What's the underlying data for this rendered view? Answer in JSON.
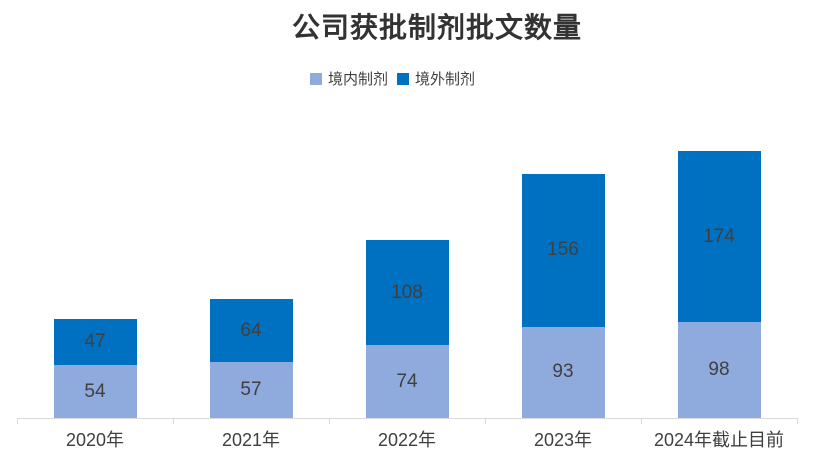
{
  "title": {
    "text": "公司获批制剂批文数量",
    "color": "#333333"
  },
  "legend": {
    "items": [
      {
        "label": "境内制剂",
        "color": "#8FAADC"
      },
      {
        "label": "境外制剂",
        "color": "#0070C0"
      }
    ]
  },
  "chart_data": {
    "type": "bar",
    "stacked": true,
    "title": "公司获批制剂批文数量",
    "categories": [
      "2020年",
      "2021年",
      "2022年",
      "2023年",
      "2024年截止目前"
    ],
    "series": [
      {
        "name": "境内制剂",
        "color": "#8FAADC",
        "values": [
          54,
          57,
          74,
          93,
          98
        ]
      },
      {
        "name": "境外制剂",
        "color": "#0070C0",
        "values": [
          47,
          64,
          108,
          156,
          174
        ]
      }
    ],
    "xlabel": "",
    "ylabel": "",
    "ylim": [
      0,
      280
    ],
    "grid": false,
    "y_axis_visible": false,
    "legend_position": "top",
    "data_labels": true,
    "data_label_color": "#404040",
    "axis_line_color": "#D9D9D9",
    "category_label_color": "#404040"
  }
}
